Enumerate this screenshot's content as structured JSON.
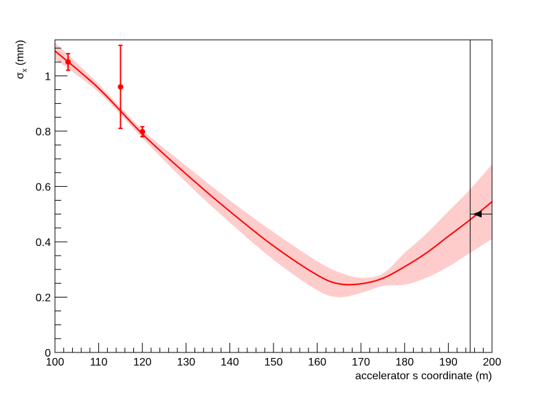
{
  "chart_data": {
    "type": "line",
    "xlabel": "accelerator s coordinate (m)",
    "ylabel_main": "σ",
    "ylabel_sub": "x",
    "ylabel_unit": " (mm)",
    "xlim": [
      100,
      200
    ],
    "ylim": [
      0,
      1.13
    ],
    "x_ticks": [
      100,
      110,
      120,
      130,
      140,
      150,
      160,
      170,
      180,
      190,
      200
    ],
    "y_ticks": [
      0,
      0.2,
      0.4,
      0.6,
      0.8,
      1
    ],
    "y_tick_labels": [
      "0",
      "0.2",
      "0.4",
      "0.6",
      "0.8",
      "1"
    ],
    "grid": false,
    "colors": {
      "fit": "#ff0000",
      "band": "#ffcccc",
      "measured": "#ff0000",
      "marker": "#000000"
    },
    "fit_curve": {
      "x": [
        100,
        110,
        120,
        130,
        140,
        150,
        160,
        165,
        170,
        175,
        180,
        185,
        190,
        195,
        200
      ],
      "y": [
        1.09,
        0.955,
        0.79,
        0.645,
        0.51,
        0.385,
        0.28,
        0.248,
        0.248,
        0.268,
        0.31,
        0.36,
        0.42,
        0.48,
        0.545
      ]
    },
    "error_band": {
      "x": [
        100,
        110,
        120,
        130,
        140,
        150,
        160,
        165,
        170,
        175,
        180,
        185,
        190,
        195,
        200
      ],
      "upper": [
        1.12,
        0.97,
        0.805,
        0.675,
        0.55,
        0.435,
        0.33,
        0.29,
        0.27,
        0.285,
        0.36,
        0.43,
        0.51,
        0.59,
        0.68
      ],
      "lower": [
        1.06,
        0.94,
        0.775,
        0.615,
        0.47,
        0.335,
        0.225,
        0.2,
        0.215,
        0.24,
        0.245,
        0.27,
        0.31,
        0.36,
        0.41
      ]
    },
    "measurements": [
      {
        "x": 103,
        "y": 1.05,
        "err": 0.03
      },
      {
        "x": 115,
        "y": 0.96,
        "err": 0.15
      },
      {
        "x": 120,
        "y": 0.798,
        "err": 0.018
      }
    ],
    "reference_line_x": 195,
    "arrow_marker": {
      "x": 197,
      "y": 0.5
    }
  }
}
